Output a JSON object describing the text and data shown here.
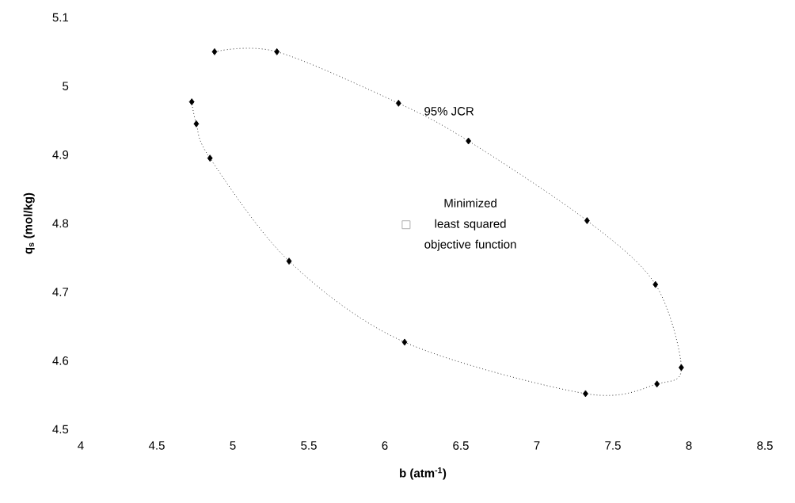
{
  "chart_data": {
    "type": "line",
    "xlabel": "**b (atm$^{-1}$)**",
    "ylabel": "**q$_{s}$ (mol/kg)**",
    "xlim": [
      4,
      8.5
    ],
    "ylim": [
      4.5,
      5.1
    ],
    "xticks": [
      4,
      4.5,
      5,
      5.5,
      6,
      6.5,
      7,
      7.5,
      8,
      8.5
    ],
    "yticks": [
      4.5,
      4.6,
      4.7,
      4.8,
      4.9,
      5,
      5.1
    ],
    "series": [
      {
        "name": "95% JCR",
        "color": "#000000",
        "marker": "diamond",
        "line_style": "dotted",
        "x": [
          4.88,
          5.29,
          6.09,
          6.55,
          7.33,
          7.78,
          7.95,
          7.79,
          7.32,
          6.13,
          5.37,
          4.85,
          4.76,
          4.73
        ],
        "values": [
          5.05,
          5.05,
          4.975,
          4.92,
          4.804,
          4.711,
          4.59,
          4.566,
          4.552,
          4.627,
          4.745,
          4.895,
          4.945,
          4.977
        ]
      },
      {
        "name": "Minimized least squared objective function",
        "type": "scatter",
        "color": "#b0b0b0",
        "marker": "square",
        "x": [
          6.14
        ],
        "values": [
          4.798
        ]
      }
    ]
  }
}
